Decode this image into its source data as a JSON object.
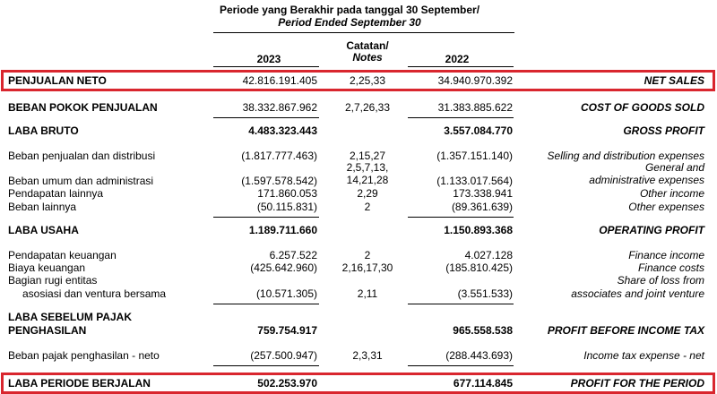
{
  "header": {
    "period_line1": "Periode yang Berakhir pada tanggal 30 September/",
    "period_line2": "Period Ended September 30",
    "col_2023": "2023",
    "col_notes_id": "Catatan/",
    "col_notes_en": "Notes",
    "col_2022": "2022"
  },
  "colors": {
    "highlight": "#d9262e"
  },
  "rows": {
    "net_sales": {
      "id": "PENJUALAN NETO",
      "v2023": "42.816.191.405",
      "notes": "2,25,33",
      "v2022": "34.940.970.392",
      "en": "NET SALES"
    },
    "cogs": {
      "id": "BEBAN POKOK PENJUALAN",
      "v2023": "38.332.867.962",
      "notes": "2,7,26,33",
      "v2022": "31.383.885.622",
      "en": "COST OF GOODS SOLD"
    },
    "gross": {
      "id": "LABA BRUTO",
      "v2023": "4.483.323.443",
      "v2022": "3.557.084.770",
      "en": "GROSS PROFIT"
    },
    "selling": {
      "id": "Beban penjualan dan distribusi",
      "v2023": "(1.817.777.463)",
      "notes": "2,15,27",
      "v2022": "(1.357.151.140)",
      "en": "Selling and distribution expenses"
    },
    "admin": {
      "id": "Beban umum dan administrasi",
      "v2023": "(1.597.578.542)",
      "notes1": "2,5,7,13,",
      "notes2": "14,21,28",
      "v2022": "(1.133.017.564)",
      "en1": "General and",
      "en2": "administrative expenses"
    },
    "other_income": {
      "id": "Pendapatan lainnya",
      "v2023": "171.860.053",
      "notes": "2,29",
      "v2022": "173.338.941",
      "en": "Other income"
    },
    "other_exp": {
      "id": "Beban lainnya",
      "v2023": "(50.115.831)",
      "notes": "2",
      "v2022": "(89.361.639)",
      "en": "Other expenses"
    },
    "operating": {
      "id": "LABA USAHA",
      "v2023": "1.189.711.660",
      "v2022": "1.150.893.368",
      "en": "OPERATING PROFIT"
    },
    "fin_income": {
      "id": "Pendapatan keuangan",
      "v2023": "6.257.522",
      "notes": "2",
      "v2022": "4.027.128",
      "en": "Finance income"
    },
    "fin_cost": {
      "id": "Biaya keuangan",
      "v2023": "(425.642.960)",
      "notes": "2,16,17,30",
      "v2022": "(185.810.425)",
      "en": "Finance costs"
    },
    "share_loss": {
      "id1": "Bagian rugi entitas",
      "id2": "asosiasi dan ventura bersama",
      "v2023": "(10.571.305)",
      "notes": "2,11",
      "v2022": "(3.551.533)",
      "en1": "Share of loss from",
      "en2": "associates and joint venture"
    },
    "pbt": {
      "id1": "LABA SEBELUM PAJAK",
      "id2": "PENGHASILAN",
      "v2023": "759.754.917",
      "v2022": "965.558.538",
      "en": "PROFIT BEFORE INCOME TAX"
    },
    "tax": {
      "id": "Beban pajak penghasilan - neto",
      "v2023": "(257.500.947)",
      "notes": "2,3,31",
      "v2022": "(288.443.693)",
      "en": "Income tax expense - net"
    },
    "net_profit": {
      "id": "LABA PERIODE BERJALAN",
      "v2023": "502.253.970",
      "v2022": "677.114.845",
      "en": "PROFIT FOR THE PERIOD"
    }
  }
}
